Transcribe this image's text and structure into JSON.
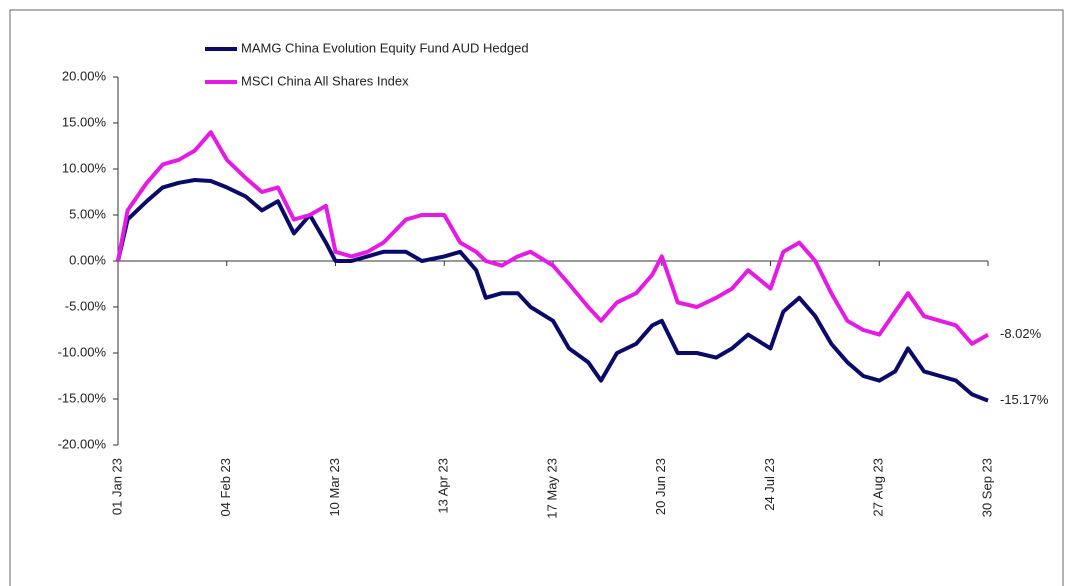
{
  "chart_data": {
    "type": "line",
    "x": [
      "2023-01-01",
      "2023-01-04",
      "2023-01-10",
      "2023-01-15",
      "2023-01-20",
      "2023-01-25",
      "2023-01-30",
      "2023-02-04",
      "2023-02-10",
      "2023-02-15",
      "2023-02-20",
      "2023-02-25",
      "2023-03-02",
      "2023-03-07",
      "2023-03-10",
      "2023-03-15",
      "2023-03-20",
      "2023-03-25",
      "2023-04-01",
      "2023-04-06",
      "2023-04-13",
      "2023-04-18",
      "2023-04-23",
      "2023-04-26",
      "2023-05-01",
      "2023-05-06",
      "2023-05-10",
      "2023-05-17",
      "2023-05-22",
      "2023-05-28",
      "2023-06-01",
      "2023-06-06",
      "2023-06-12",
      "2023-06-17",
      "2023-06-20",
      "2023-06-25",
      "2023-07-01",
      "2023-07-07",
      "2023-07-12",
      "2023-07-17",
      "2023-07-24",
      "2023-07-28",
      "2023-08-02",
      "2023-08-07",
      "2023-08-12",
      "2023-08-17",
      "2023-08-22",
      "2023-08-27",
      "2023-09-01",
      "2023-09-05",
      "2023-09-10",
      "2023-09-15",
      "2023-09-20",
      "2023-09-25",
      "2023-09-30"
    ],
    "series": [
      {
        "name": "MAMG China Evolution Equity Fund AUD Hedged",
        "color": "#0a0a6b",
        "end_label": "-15.17%",
        "values": [
          0,
          4.5,
          6.5,
          8,
          8.5,
          8.8,
          8.7,
          8,
          7,
          5.5,
          6.5,
          3,
          5,
          2,
          0,
          0,
          0.5,
          1,
          1,
          0,
          0.5,
          1,
          -1,
          -4,
          -3.5,
          -3.5,
          -5,
          -6.5,
          -9.5,
          -11,
          -13,
          -10,
          -9,
          -7,
          -6.5,
          -10,
          -10,
          -10.5,
          -9.5,
          -8,
          -9.5,
          -5.5,
          -4,
          -6,
          -9,
          -11,
          -12.5,
          -13,
          -12,
          -9.5,
          -12,
          -12.5,
          -13,
          -14.5,
          -15.17
        ]
      },
      {
        "name": "MSCI China All Shares Index",
        "color": "#e619e6",
        "end_label": "-8.02%",
        "values": [
          0,
          5.5,
          8.5,
          10.5,
          11,
          12,
          14,
          11,
          9,
          7.5,
          8,
          4.5,
          5,
          6,
          1,
          0.5,
          1,
          2,
          4.5,
          5,
          5,
          2,
          1,
          0,
          -0.5,
          0.5,
          1,
          -0.5,
          -2.5,
          -5,
          -6.5,
          -4.5,
          -3.5,
          -1.5,
          0.5,
          -4.5,
          -5,
          -4,
          -3,
          -1,
          -3,
          1,
          2,
          0,
          -3.5,
          -6.5,
          -7.5,
          -8,
          -5.5,
          -3.5,
          -6,
          -6.5,
          -7,
          -9,
          -8.02
        ]
      }
    ],
    "xlim": [
      "2023-01-01",
      "2023-09-30"
    ],
    "xticks": [
      {
        "value": "2023-01-01",
        "label": "01 Jan 23"
      },
      {
        "value": "2023-02-04",
        "label": "04 Feb 23"
      },
      {
        "value": "2023-03-10",
        "label": "10 Mar 23"
      },
      {
        "value": "2023-04-13",
        "label": "13 Apr 23"
      },
      {
        "value": "2023-05-17",
        "label": "17 May 23"
      },
      {
        "value": "2023-06-20",
        "label": "20 Jun 23"
      },
      {
        "value": "2023-07-24",
        "label": "24 Jul 23"
      },
      {
        "value": "2023-08-27",
        "label": "27 Aug 23"
      },
      {
        "value": "2023-09-30",
        "label": "30 Sep 23"
      }
    ],
    "ylim": [
      -20,
      20
    ],
    "yticks": [
      {
        "value": -20,
        "label": "-20.00%"
      },
      {
        "value": -15,
        "label": "-15.00%"
      },
      {
        "value": -10,
        "label": "-10.00%"
      },
      {
        "value": -5,
        "label": "-5.00%"
      },
      {
        "value": 0,
        "label": "0.00%"
      },
      {
        "value": 5,
        "label": "5.00%"
      },
      {
        "value": 10,
        "label": "10.00%"
      },
      {
        "value": 15,
        "label": "15.00%"
      },
      {
        "value": 20,
        "label": "20.00%"
      }
    ]
  }
}
